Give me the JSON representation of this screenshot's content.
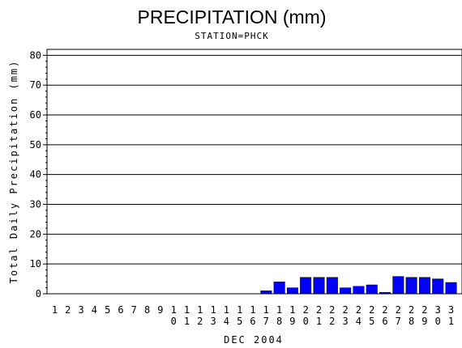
{
  "chart_data": {
    "type": "bar",
    "title": "PRECIPITATION (mm)",
    "subtitle": "STATION=PHCK",
    "xlabel": "DEC 2004",
    "ylabel": "Total Daily Precipitation (mm)",
    "categories": [
      "1",
      "2",
      "3",
      "4",
      "5",
      "6",
      "7",
      "8",
      "9",
      "10",
      "11",
      "12",
      "13",
      "14",
      "15",
      "16",
      "17",
      "18",
      "19",
      "20",
      "21",
      "22",
      "23",
      "24",
      "25",
      "26",
      "27",
      "28",
      "29",
      "30",
      "31"
    ],
    "values": [
      0,
      0,
      0,
      0,
      0,
      0,
      0,
      0,
      0,
      0,
      0,
      0,
      0,
      0,
      0,
      0,
      1.0,
      4.0,
      2.0,
      5.5,
      5.5,
      5.5,
      2.0,
      2.5,
      3.0,
      0.5,
      5.8,
      5.5,
      5.5,
      5.0,
      3.8
    ],
    "ylim": [
      0,
      82
    ],
    "yticks": [
      0,
      10,
      20,
      30,
      40,
      50,
      60,
      70,
      80
    ],
    "bar_color": "#0000ff",
    "grid": true,
    "legend": "none"
  }
}
